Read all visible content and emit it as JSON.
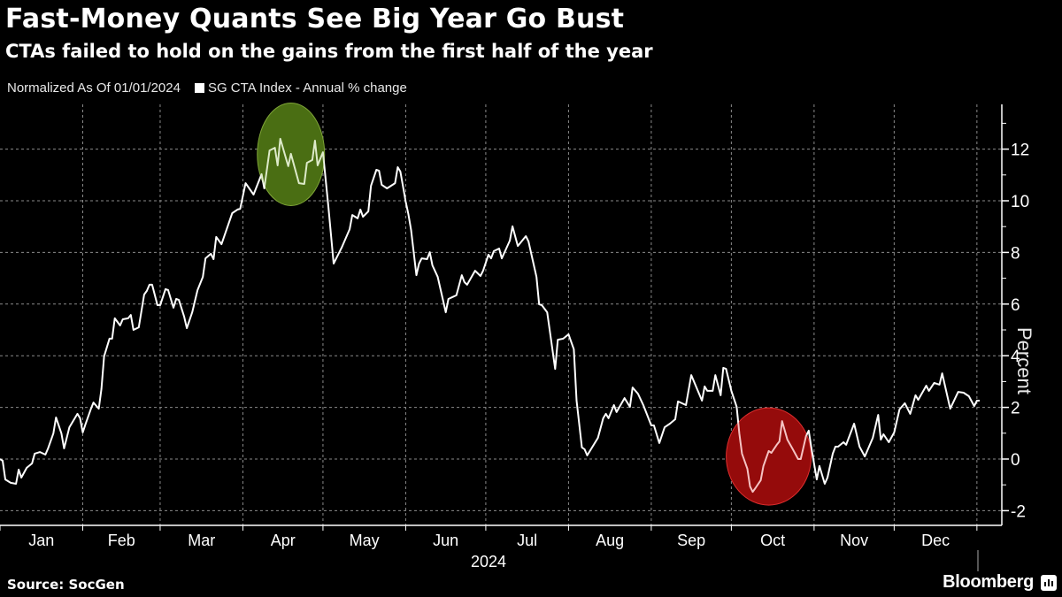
{
  "header": {
    "title": "Fast-Money Quants See Big Year Go Bust",
    "subtitle": "CTAs failed to hold on the gains from the first half of the year"
  },
  "legend": {
    "note": "Normalized As Of 01/01/2024",
    "series_label": "SG CTA Index - Annual % change"
  },
  "footer": {
    "source": "Source: SocGen",
    "brand": "Bloomberg"
  },
  "colors": {
    "background": "#000000",
    "line": "#ffffff",
    "highlight_green": "#3a5a0a",
    "highlight_red": "#8b0000"
  },
  "chart_data": {
    "type": "line",
    "title": "Fast-Money Quants See Big Year Go Bust",
    "subtitle": "CTAs failed to hold on the gains from the first half of the year",
    "xlabel": "2024",
    "ylabel": "Percent",
    "x_ticks": [
      "Jan",
      "Feb",
      "Mar",
      "Apr",
      "May",
      "Jun",
      "Jul",
      "Aug",
      "Sep",
      "Oct",
      "Nov",
      "Dec"
    ],
    "y_ticks": [
      -2,
      0,
      2,
      4,
      6,
      8,
      10,
      12
    ],
    "ylim": [
      -2.8,
      13.7
    ],
    "xlim_days": [
      0,
      375
    ],
    "grid": true,
    "legend_position": "top-left",
    "annotations": [
      {
        "type": "ellipse",
        "color": "green",
        "label": "first-half peak",
        "day_center": 109,
        "value_center": 11.8
      },
      {
        "type": "ellipse",
        "color": "red",
        "label": "October trough",
        "day_center": 288,
        "value_center": 0.1
      }
    ],
    "series": [
      {
        "name": "SG CTA Index - Annual % change",
        "x_unit": "day of year 2024",
        "points": [
          [
            0,
            0.0
          ],
          [
            1,
            -0.07
          ],
          [
            2,
            -0.79
          ],
          [
            4,
            -0.92
          ],
          [
            6,
            -0.96
          ],
          [
            7,
            -0.41
          ],
          [
            8,
            -0.72
          ],
          [
            10,
            -0.34
          ],
          [
            12,
            -0.17
          ],
          [
            13,
            0.21
          ],
          [
            15,
            0.27
          ],
          [
            17,
            0.17
          ],
          [
            18,
            0.41
          ],
          [
            20,
            0.99
          ],
          [
            21,
            1.61
          ],
          [
            23,
            0.99
          ],
          [
            24,
            0.41
          ],
          [
            26,
            1.23
          ],
          [
            29,
            1.75
          ],
          [
            30,
            1.58
          ],
          [
            31,
            1.03
          ],
          [
            32,
            1.34
          ],
          [
            34,
            1.92
          ],
          [
            35,
            2.19
          ],
          [
            37,
            1.95
          ],
          [
            38,
            2.71
          ],
          [
            39,
            3.97
          ],
          [
            41,
            4.66
          ],
          [
            42,
            4.66
          ],
          [
            43,
            5.45
          ],
          [
            45,
            5.17
          ],
          [
            46,
            5.41
          ],
          [
            48,
            5.45
          ],
          [
            49,
            5.58
          ],
          [
            50,
            5.0
          ],
          [
            52,
            5.1
          ],
          [
            54,
            6.37
          ],
          [
            55,
            6.51
          ],
          [
            56,
            6.75
          ],
          [
            57,
            6.75
          ],
          [
            59,
            5.96
          ],
          [
            60,
            5.96
          ],
          [
            62,
            6.58
          ],
          [
            63,
            6.54
          ],
          [
            65,
            5.86
          ],
          [
            66,
            6.2
          ],
          [
            67,
            6.16
          ],
          [
            69,
            5.51
          ],
          [
            70,
            5.07
          ],
          [
            72,
            5.68
          ],
          [
            74,
            6.54
          ],
          [
            76,
            7.05
          ],
          [
            77,
            7.77
          ],
          [
            79,
            7.95
          ],
          [
            80,
            7.74
          ],
          [
            81,
            8.6
          ],
          [
            83,
            8.32
          ],
          [
            87,
            9.52
          ],
          [
            89,
            9.66
          ],
          [
            90,
            9.69
          ],
          [
            92,
            10.68
          ],
          [
            95,
            10.24
          ],
          [
            98,
            11.03
          ],
          [
            99,
            10.48
          ],
          [
            101,
            11.95
          ],
          [
            103,
            12.05
          ],
          [
            104,
            11.37
          ],
          [
            105,
            12.4
          ],
          [
            108,
            11.34
          ],
          [
            109,
            11.82
          ],
          [
            112,
            10.68
          ],
          [
            114,
            10.65
          ],
          [
            115,
            11.47
          ],
          [
            117,
            11.58
          ],
          [
            118,
            12.33
          ],
          [
            119,
            11.37
          ],
          [
            121,
            11.88
          ],
          [
            123,
            9.79
          ],
          [
            125,
            7.57
          ],
          [
            128,
            8.18
          ],
          [
            131,
            8.9
          ],
          [
            132,
            9.45
          ],
          [
            134,
            9.32
          ],
          [
            135,
            9.66
          ],
          [
            136,
            9.38
          ],
          [
            138,
            9.59
          ],
          [
            139,
            10.58
          ],
          [
            141,
            11.2
          ],
          [
            142,
            11.16
          ],
          [
            143,
            10.62
          ],
          [
            145,
            10.48
          ],
          [
            148,
            10.68
          ],
          [
            149,
            11.3
          ],
          [
            150,
            11.13
          ],
          [
            152,
            9.97
          ],
          [
            153,
            9.49
          ],
          [
            154,
            8.87
          ],
          [
            156,
            7.12
          ],
          [
            157,
            7.57
          ],
          [
            158,
            7.77
          ],
          [
            160,
            7.74
          ],
          [
            161,
            8.01
          ],
          [
            162,
            7.5
          ],
          [
            164,
            7.05
          ],
          [
            167,
            5.68
          ],
          [
            168,
            6.2
          ],
          [
            171,
            6.34
          ],
          [
            173,
            7.12
          ],
          [
            174,
            6.85
          ],
          [
            175,
            6.75
          ],
          [
            178,
            7.29
          ],
          [
            180,
            7.09
          ],
          [
            181,
            7.29
          ],
          [
            183,
            7.91
          ],
          [
            184,
            7.77
          ],
          [
            185,
            8.05
          ],
          [
            187,
            8.15
          ],
          [
            188,
            7.77
          ],
          [
            191,
            8.46
          ],
          [
            192,
            9.01
          ],
          [
            194,
            8.25
          ],
          [
            197,
            8.63
          ],
          [
            198,
            8.42
          ],
          [
            201,
            7.05
          ],
          [
            202,
            5.99
          ],
          [
            203,
            5.96
          ],
          [
            205,
            5.68
          ],
          [
            208,
            3.49
          ],
          [
            209,
            4.62
          ],
          [
            211,
            4.66
          ],
          [
            213,
            4.83
          ],
          [
            215,
            4.25
          ],
          [
            216,
            2.26
          ],
          [
            218,
            0.45
          ],
          [
            219,
            0.38
          ],
          [
            220,
            0.14
          ],
          [
            224,
            0.82
          ],
          [
            226,
            1.58
          ],
          [
            227,
            1.75
          ],
          [
            228,
            1.58
          ],
          [
            230,
            2.09
          ],
          [
            231,
            1.82
          ],
          [
            234,
            2.36
          ],
          [
            236,
            2.02
          ],
          [
            237,
            2.77
          ],
          [
            239,
            2.53
          ],
          [
            241,
            2.09
          ],
          [
            244,
            1.3
          ],
          [
            245,
            1.3
          ],
          [
            247,
            0.62
          ],
          [
            249,
            1.23
          ],
          [
            251,
            1.37
          ],
          [
            253,
            1.54
          ],
          [
            254,
            2.23
          ],
          [
            257,
            2.09
          ],
          [
            259,
            3.25
          ],
          [
            263,
            2.26
          ],
          [
            264,
            2.81
          ],
          [
            265,
            2.64
          ],
          [
            267,
            2.64
          ],
          [
            268,
            3.25
          ],
          [
            270,
            2.47
          ],
          [
            271,
            3.53
          ],
          [
            272,
            3.49
          ],
          [
            274,
            2.64
          ],
          [
            276,
            2.02
          ],
          [
            277,
            0.99
          ],
          [
            278,
            0.21
          ],
          [
            280,
            -0.38
          ],
          [
            281,
            -1.06
          ],
          [
            282,
            -1.27
          ],
          [
            283,
            -1.13
          ],
          [
            285,
            -0.82
          ],
          [
            286,
            -0.27
          ],
          [
            288,
            0.31
          ],
          [
            289,
            0.24
          ],
          [
            291,
            0.55
          ],
          [
            292,
            0.68
          ],
          [
            293,
            1.47
          ],
          [
            295,
            0.75
          ],
          [
            297,
            0.38
          ],
          [
            299,
            0.0
          ],
          [
            300,
            0.0
          ],
          [
            302,
            0.89
          ],
          [
            303,
            1.1
          ],
          [
            304,
            0.41
          ],
          [
            306,
            -0.79
          ],
          [
            307,
            -0.27
          ],
          [
            309,
            -0.96
          ],
          [
            310,
            -0.72
          ],
          [
            312,
            0.21
          ],
          [
            313,
            0.48
          ],
          [
            314,
            0.48
          ],
          [
            316,
            0.65
          ],
          [
            317,
            0.55
          ],
          [
            320,
            1.37
          ],
          [
            322,
            0.48
          ],
          [
            324,
            0.1
          ],
          [
            327,
            0.82
          ],
          [
            329,
            1.71
          ],
          [
            330,
            0.75
          ],
          [
            331,
            0.96
          ],
          [
            333,
            0.65
          ],
          [
            335,
            1.03
          ],
          [
            337,
            1.92
          ],
          [
            339,
            2.16
          ],
          [
            341,
            1.75
          ],
          [
            343,
            2.47
          ],
          [
            344,
            2.29
          ],
          [
            347,
            2.84
          ],
          [
            348,
            2.64
          ],
          [
            350,
            2.95
          ],
          [
            352,
            2.88
          ],
          [
            353,
            3.32
          ],
          [
            356,
            1.95
          ],
          [
            359,
            2.6
          ],
          [
            361,
            2.57
          ],
          [
            363,
            2.43
          ],
          [
            365,
            2.05
          ],
          [
            366,
            2.26
          ],
          [
            367,
            2.26
          ]
        ]
      }
    ]
  }
}
